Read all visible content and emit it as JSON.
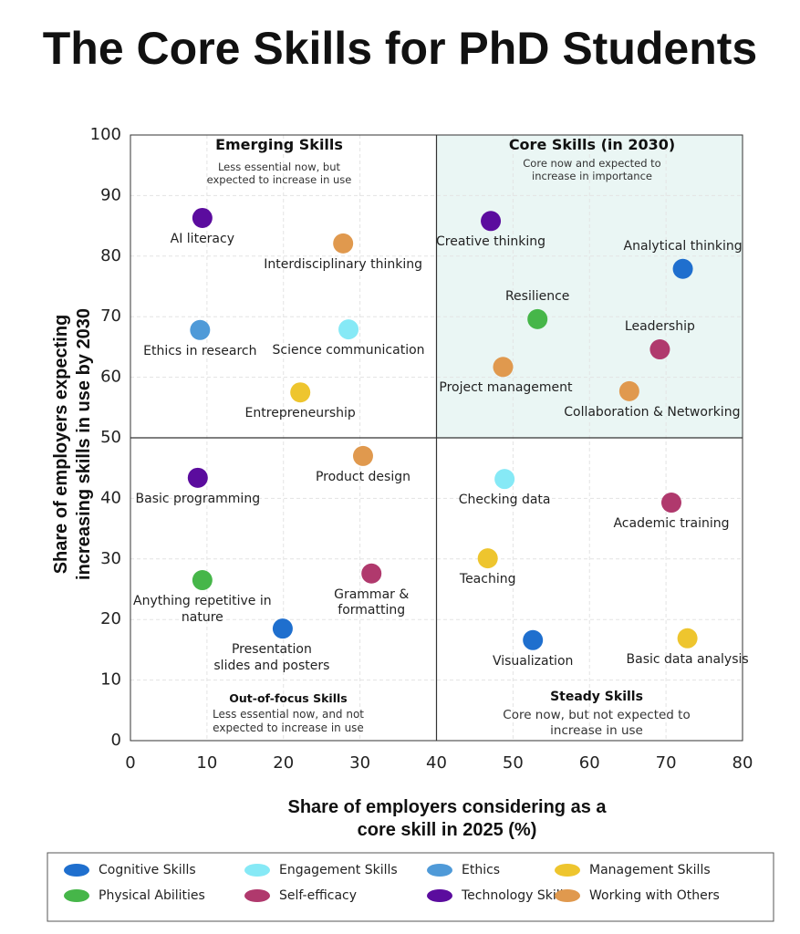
{
  "chart_data": {
    "type": "scatter",
    "title": "The Core Skills for PhD Students",
    "x_label": "Share of employers considering as a core skill in 2025 (%)",
    "y_label": "Share of employers expecting increasing skills in use by 2030",
    "xlim": [
      0,
      80
    ],
    "ylim": [
      0,
      100
    ],
    "xticks": [
      0,
      10,
      20,
      30,
      40,
      50,
      60,
      70,
      80
    ],
    "yticks": [
      0,
      10,
      20,
      30,
      40,
      50,
      60,
      70,
      80,
      90,
      100
    ],
    "grid": true,
    "quadrant_split": {
      "x": 40,
      "y": 50
    },
    "quadrants": [
      {
        "title": "Emerging Skills",
        "note": "Less essential now, but expected to increase in use"
      },
      {
        "title": "Core Skills (in 2030)",
        "note": "Core now and expected to increase in importance",
        "shade": "#eaf6f4"
      },
      {
        "title": "Out-of-focus Skills",
        "note": "Less essential now, and not expected to increase in use"
      },
      {
        "title": "Steady Skills",
        "note": "Core now, but not expected to increase in use"
      }
    ],
    "series": [
      {
        "name": "Cognitive Skills",
        "color": "#1f6fce",
        "x": [
          72.2,
          19.9,
          52.6
        ],
        "y": [
          77.9,
          18.5,
          16.6
        ],
        "labels": [
          "Analytical thinking",
          "Presentation slides and posters",
          "Visualization"
        ]
      },
      {
        "name": "Engagement Skills",
        "color": "#86e9f6",
        "x": [
          28.5,
          48.9
        ],
        "y": [
          67.9,
          43.2
        ],
        "labels": [
          "Science communication",
          "Checking data"
        ]
      },
      {
        "name": "Ethics",
        "color": "#4f9ad8",
        "x": [
          9.1
        ],
        "y": [
          67.8
        ],
        "labels": [
          "Ethics in research"
        ]
      },
      {
        "name": "Management Skills",
        "color": "#eec52e",
        "x": [
          22.2,
          46.7,
          72.8
        ],
        "y": [
          57.5,
          30.1,
          16.9
        ],
        "labels": [
          "Entrepreneurship",
          "Teaching",
          "Basic data analysis"
        ]
      },
      {
        "name": "Physical Abilities",
        "color": "#46b649",
        "x": [
          53.2,
          9.4
        ],
        "y": [
          69.6,
          26.5
        ],
        "labels": [
          "Resilience",
          "Anything repetitive in nature"
        ]
      },
      {
        "name": "Self-efficacy",
        "color": "#b0396d",
        "x": [
          69.2,
          70.7,
          31.5
        ],
        "y": [
          64.6,
          39.3,
          27.6
        ],
        "labels": [
          "Leadership",
          "Academic training",
          "Grammar & formatting"
        ]
      },
      {
        "name": "Technology Skills",
        "color": "#5b0c9e",
        "x": [
          9.4,
          47.1,
          8.8
        ],
        "y": [
          86.3,
          85.8,
          43.4
        ],
        "labels": [
          "AI literacy",
          "Creative thinking",
          "Basic programming"
        ]
      },
      {
        "name": "Working with Others",
        "color": "#e0994e",
        "x": [
          27.8,
          48.7,
          65.2,
          30.4
        ],
        "y": [
          82.1,
          61.7,
          57.7,
          47.0
        ],
        "labels": [
          "Interdisciplinary thinking",
          "Project management",
          "Collaboration & Networking",
          "Product design"
        ]
      }
    ]
  }
}
